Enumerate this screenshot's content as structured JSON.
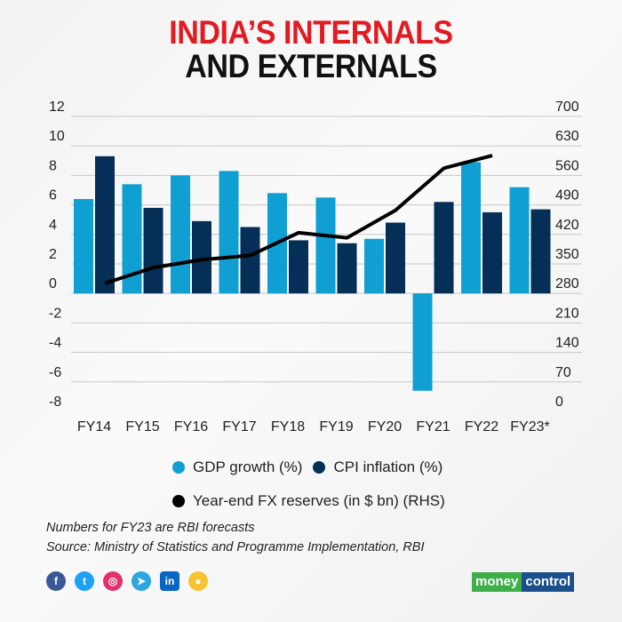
{
  "title_line1": "INDIA’S INTERNALS",
  "title_line2": "AND EXTERNALS",
  "chart_data": {
    "type": "bar",
    "categories": [
      "FY14",
      "FY15",
      "FY16",
      "FY17",
      "FY18",
      "FY19",
      "FY20",
      "FY21",
      "FY22",
      "FY23*"
    ],
    "series": [
      {
        "name": "GDP growth (%)",
        "type": "bar",
        "axis": "left",
        "color": "#0f9fd3",
        "values": [
          6.4,
          7.4,
          8.0,
          8.3,
          6.8,
          6.5,
          3.7,
          -6.6,
          8.9,
          7.2
        ]
      },
      {
        "name": "CPI inflation (%)",
        "type": "bar",
        "axis": "left",
        "color": "#062f57",
        "values": [
          9.3,
          5.8,
          4.9,
          4.5,
          3.6,
          3.4,
          4.8,
          6.2,
          5.5,
          5.7
        ]
      },
      {
        "name": "Year-end FX reserves (in $ bn) (RHS)",
        "type": "line",
        "axis": "right",
        "color": "#000000",
        "values": [
          304,
          341,
          360,
          370,
          424,
          412,
          477,
          577,
          607,
          null
        ]
      }
    ],
    "left_axis": {
      "ylim": [
        -8,
        12
      ],
      "ticks": [
        "12",
        "10",
        "8",
        "6",
        "4",
        "2",
        "0",
        "-2",
        "-4",
        "-6",
        "-8"
      ]
    },
    "right_axis": {
      "ylim": [
        0,
        700
      ],
      "ticks": [
        "700",
        "630",
        "560",
        "490",
        "420",
        "350",
        "280",
        "210",
        "140",
        "70",
        "0"
      ]
    },
    "grid": true,
    "legend_position": "bottom"
  },
  "notes": [
    "Numbers for FY23 are RBI forecasts",
    "Source: Ministry of Statistics and Programme Implementation, RBI"
  ],
  "social_icons": [
    "facebook-icon",
    "twitter-icon",
    "instagram-icon",
    "telegram-icon",
    "linkedin-icon",
    "koo-icon"
  ],
  "logo": {
    "part1": "money",
    "part2": "control"
  }
}
